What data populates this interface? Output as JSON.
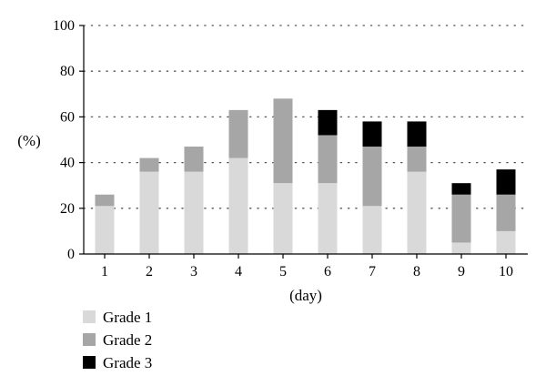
{
  "chart_data": {
    "type": "bar",
    "stacked": true,
    "categories": [
      "1",
      "2",
      "3",
      "4",
      "5",
      "6",
      "7",
      "8",
      "9",
      "10"
    ],
    "series": [
      {
        "name": "Grade 1",
        "color": "#d9d9d9",
        "values": [
          21,
          36,
          36,
          42,
          31,
          31,
          21,
          36,
          5,
          10
        ]
      },
      {
        "name": "Grade 2",
        "color": "#a6a6a6",
        "values": [
          5,
          6,
          11,
          21,
          37,
          21,
          26,
          11,
          21,
          16
        ]
      },
      {
        "name": "Grade 3",
        "color": "#000000",
        "values": [
          0,
          0,
          0,
          0,
          0,
          11,
          11,
          11,
          5,
          11
        ]
      }
    ],
    "xlabel": "(day)",
    "ylabel": "(%)",
    "ylim": [
      0,
      100
    ],
    "yticks": [
      "0",
      "20",
      "40",
      "60",
      "80",
      "100"
    ],
    "grid": "horizontal dotted",
    "legend": "bottom-left"
  }
}
